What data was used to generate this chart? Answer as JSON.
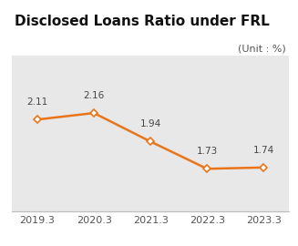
{
  "title": "Disclosed Loans Ratio under FRL",
  "unit_label": "(Unit : %)",
  "x_labels": [
    "2019.3",
    "2020.3",
    "2021.3",
    "2022.3",
    "2023.3"
  ],
  "x_values": [
    0,
    1,
    2,
    3,
    4
  ],
  "y_values": [
    2.11,
    2.16,
    1.94,
    1.73,
    1.74
  ],
  "line_color": "#E8751A",
  "marker_color_face": "#FFFFFF",
  "marker_color_edge": "#E8751A",
  "marker_style": "D",
  "marker_size": 4,
  "line_width": 1.8,
  "ylim": [
    1.4,
    2.6
  ],
  "title_bg_color": "#FFFFFF",
  "plot_bg_color": "#E8E8E8",
  "title_fontsize": 11,
  "unit_fontsize": 8,
  "label_fontsize": 7.5,
  "tick_fontsize": 8,
  "grid_color": "#FFFFFF",
  "data_label_color": "#444444",
  "yticks": [
    1.6,
    1.8,
    2.0,
    2.2,
    2.4
  ]
}
